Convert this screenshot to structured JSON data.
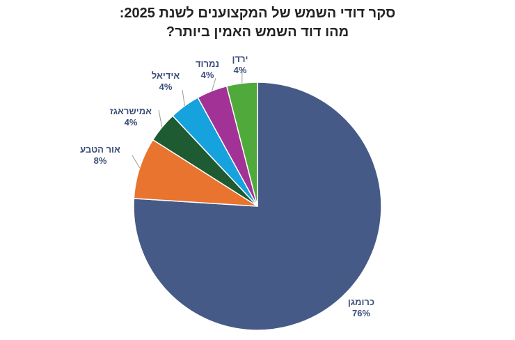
{
  "title_lines": [
    "סקר דודי השמש של המקצוענים לשנת 2025:",
    "מהו דוד השמש האמין ביותר?"
  ],
  "chart_data": {
    "type": "pie",
    "title": "סקר דודי השמש של המקצוענים לשנת 2025: מהו דוד השמש האמין ביותר?",
    "slices": [
      {
        "label": "כרומגן",
        "value": 76,
        "display": "76%",
        "color": "#465a87"
      },
      {
        "label": "אור הטבע",
        "value": 8,
        "display": "8%",
        "color": "#e8742f"
      },
      {
        "label": "אמישראגז",
        "value": 4,
        "display": "4%",
        "color": "#1e5a32"
      },
      {
        "label": "אידיאל",
        "value": 4,
        "display": "4%",
        "color": "#15a2dd"
      },
      {
        "label": "נמרוד",
        "value": 4,
        "display": "4%",
        "color": "#a33296"
      },
      {
        "label": "ירדן",
        "value": 4,
        "display": "4%",
        "color": "#4faa3b"
      }
    ],
    "start_angle": "12 o'clock",
    "direction": "clockwise",
    "legend": "none",
    "labels": "outside with leader lines"
  }
}
